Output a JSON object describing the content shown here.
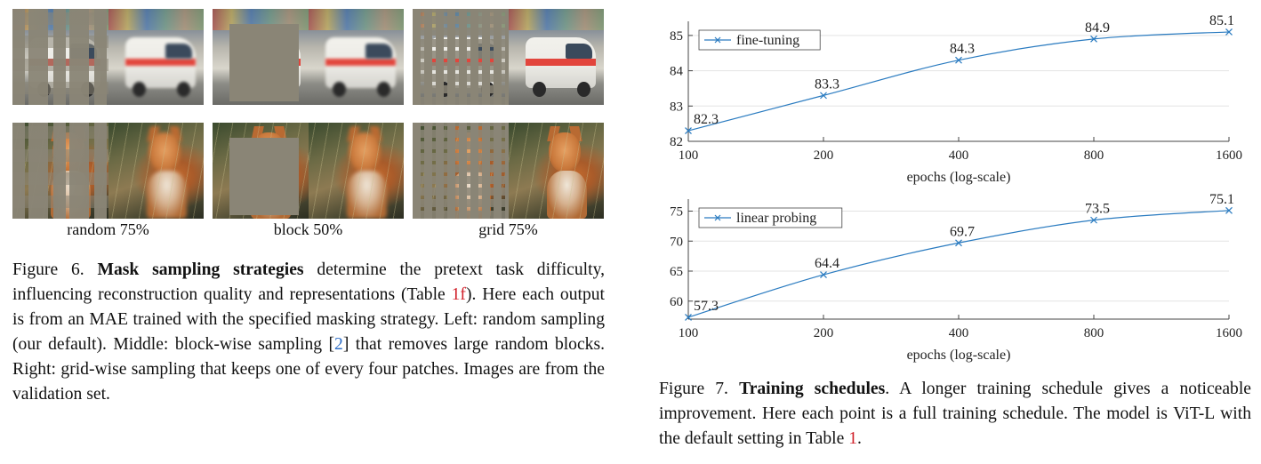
{
  "figure6": {
    "labels": [
      "random 75%",
      "block 50%",
      "grid 75%"
    ],
    "caption": {
      "prefix": "Figure 6. ",
      "title": "Mask sampling strategies",
      "t1": " determine the pretext task difficulty, influencing reconstruction quality and representations (Table ",
      "ref1": "1f",
      "t2": "). Here each output is from an MAE trained with the specified masking strategy. Left: random sampling (our default). Middle: block-wise sampling [",
      "ref2": "2",
      "t3": "] that removes large random blocks. Right: grid-wise sampling that keeps one of every four patches. Images are from the validation set."
    }
  },
  "figure7": {
    "caption": {
      "prefix": "Figure 7. ",
      "title": "Training schedules",
      "t1": ". A longer training schedule gives a noticeable improvement. Here each point is a full training schedule. The model is ViT-L with the default setting in Table ",
      "ref1": "1",
      "t2": "."
    }
  },
  "chart_data": [
    {
      "type": "line",
      "legend": "fine-tuning",
      "x": [
        100,
        200,
        400,
        800,
        1600
      ],
      "values": [
        82.3,
        83.3,
        84.3,
        84.9,
        85.1
      ],
      "data_labels": [
        "82.3",
        "83.3",
        "84.3",
        "84.9",
        "85.1"
      ],
      "xticks": [
        "100",
        "200",
        "400",
        "800",
        "1600"
      ],
      "yticks": [
        "82",
        "83",
        "84",
        "85"
      ],
      "ylim": [
        82,
        85.4
      ],
      "xlabel": "epochs (log-scale)",
      "color": "#2a7bc0"
    },
    {
      "type": "line",
      "legend": "linear probing",
      "x": [
        100,
        200,
        400,
        800,
        1600
      ],
      "values": [
        57.3,
        64.4,
        69.7,
        73.5,
        75.1
      ],
      "data_labels": [
        "57.3",
        "64.4",
        "69.7",
        "73.5",
        "75.1"
      ],
      "xticks": [
        "100",
        "200",
        "400",
        "800",
        "1600"
      ],
      "yticks": [
        "60",
        "65",
        "70",
        "75"
      ],
      "ylim": [
        57,
        77
      ],
      "xlabel": "epochs (log-scale)",
      "color": "#2a7bc0"
    }
  ]
}
